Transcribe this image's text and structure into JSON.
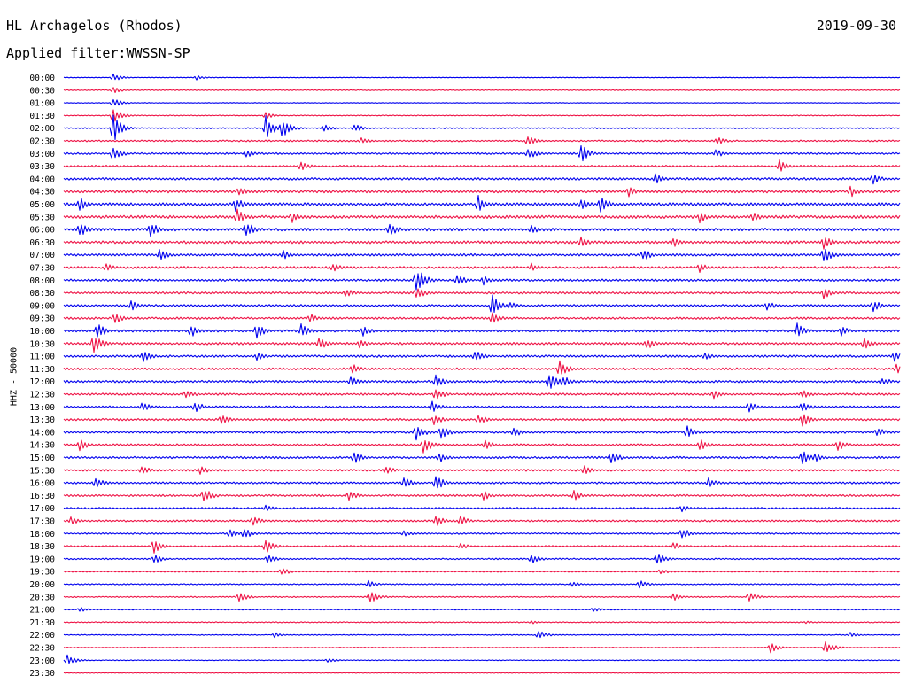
{
  "header": {
    "station": "HL Archagelos (Rhodos)",
    "date": "2019-09-30",
    "filter_label": "Applied filter:",
    "filter_value": "WWSSN-SP"
  },
  "chart_data": {
    "type": "line",
    "title": "HL Archagelos (Rhodos)",
    "ylabel": "HHZ - 50000",
    "colors": [
      "#0000ee",
      "#ee1144"
    ],
    "categories": [
      "00:00",
      "00:30",
      "01:00",
      "01:30",
      "02:00",
      "02:30",
      "03:00",
      "03:30",
      "04:00",
      "04:30",
      "05:00",
      "05:30",
      "06:00",
      "06:30",
      "07:00",
      "07:30",
      "08:00",
      "08:30",
      "09:00",
      "09:30",
      "10:00",
      "10:30",
      "11:00",
      "11:30",
      "12:00",
      "12:30",
      "13:00",
      "13:30",
      "14:00",
      "14:30",
      "15:00",
      "15:30",
      "16:00",
      "16:30",
      "17:00",
      "17:30",
      "18:00",
      "18:30",
      "19:00",
      "19:30",
      "20:00",
      "20:30",
      "21:00",
      "21:30",
      "22:00",
      "22:30",
      "23:00",
      "23:30"
    ],
    "noise": [
      0.25,
      0.35,
      0.25,
      0.35,
      0.45,
      0.6,
      0.7,
      0.75,
      0.9,
      1.0,
      1.1,
      1.1,
      1.1,
      1.0,
      0.9,
      0.9,
      0.85,
      0.8,
      0.8,
      0.8,
      0.9,
      0.9,
      0.85,
      0.8,
      0.85,
      0.8,
      0.8,
      0.8,
      0.85,
      0.8,
      0.8,
      0.8,
      0.75,
      0.75,
      0.7,
      0.7,
      0.6,
      0.6,
      0.55,
      0.5,
      0.45,
      0.45,
      0.4,
      0.4,
      0.35,
      0.35,
      0.3,
      0.3
    ],
    "events": [
      {
        "row": 0,
        "x": 127,
        "amp": 5
      },
      {
        "row": 0,
        "x": 222,
        "amp": 3
      },
      {
        "row": 1,
        "x": 127,
        "amp": 4
      },
      {
        "row": 2,
        "x": 127,
        "amp": 6
      },
      {
        "row": 3,
        "x": 127,
        "amp": 10
      },
      {
        "row": 3,
        "x": 300,
        "amp": 4
      },
      {
        "row": 4,
        "x": 127,
        "amp": 18
      },
      {
        "row": 4,
        "x": 300,
        "amp": 14
      },
      {
        "row": 4,
        "x": 318,
        "amp": 12
      },
      {
        "row": 4,
        "x": 365,
        "amp": 5
      },
      {
        "row": 4,
        "x": 400,
        "amp": 5
      },
      {
        "row": 5,
        "x": 408,
        "amp": 4
      },
      {
        "row": 5,
        "x": 596,
        "amp": 6
      },
      {
        "row": 5,
        "x": 810,
        "amp": 5
      },
      {
        "row": 6,
        "x": 127,
        "amp": 10
      },
      {
        "row": 6,
        "x": 278,
        "amp": 5
      },
      {
        "row": 6,
        "x": 595,
        "amp": 8
      },
      {
        "row": 6,
        "x": 655,
        "amp": 12
      },
      {
        "row": 6,
        "x": 808,
        "amp": 5
      },
      {
        "row": 7,
        "x": 340,
        "amp": 6
      },
      {
        "row": 7,
        "x": 880,
        "amp": 7
      },
      {
        "row": 8,
        "x": 740,
        "amp": 6
      },
      {
        "row": 8,
        "x": 985,
        "amp": 7
      },
      {
        "row": 9,
        "x": 270,
        "amp": 6
      },
      {
        "row": 9,
        "x": 710,
        "amp": 6
      },
      {
        "row": 9,
        "x": 960,
        "amp": 7
      },
      {
        "row": 10,
        "x": 90,
        "amp": 8
      },
      {
        "row": 10,
        "x": 265,
        "amp": 9
      },
      {
        "row": 10,
        "x": 540,
        "amp": 10
      },
      {
        "row": 10,
        "x": 655,
        "amp": 8
      },
      {
        "row": 10,
        "x": 678,
        "amp": 11
      },
      {
        "row": 11,
        "x": 268,
        "amp": 9
      },
      {
        "row": 11,
        "x": 330,
        "amp": 7
      },
      {
        "row": 11,
        "x": 790,
        "amp": 7
      },
      {
        "row": 11,
        "x": 850,
        "amp": 6
      },
      {
        "row": 12,
        "x": 90,
        "amp": 9
      },
      {
        "row": 12,
        "x": 170,
        "amp": 9
      },
      {
        "row": 12,
        "x": 278,
        "amp": 11
      },
      {
        "row": 12,
        "x": 440,
        "amp": 8
      },
      {
        "row": 12,
        "x": 600,
        "amp": 6
      },
      {
        "row": 13,
        "x": 655,
        "amp": 7
      },
      {
        "row": 13,
        "x": 760,
        "amp": 6
      },
      {
        "row": 13,
        "x": 930,
        "amp": 8
      },
      {
        "row": 14,
        "x": 180,
        "amp": 7
      },
      {
        "row": 14,
        "x": 320,
        "amp": 6
      },
      {
        "row": 14,
        "x": 725,
        "amp": 8
      },
      {
        "row": 14,
        "x": 930,
        "amp": 10
      },
      {
        "row": 15,
        "x": 120,
        "amp": 5
      },
      {
        "row": 15,
        "x": 375,
        "amp": 6
      },
      {
        "row": 15,
        "x": 600,
        "amp": 5
      },
      {
        "row": 15,
        "x": 790,
        "amp": 6
      },
      {
        "row": 16,
        "x": 470,
        "amp": 16
      },
      {
        "row": 16,
        "x": 515,
        "amp": 8
      },
      {
        "row": 16,
        "x": 545,
        "amp": 6
      },
      {
        "row": 17,
        "x": 390,
        "amp": 6
      },
      {
        "row": 17,
        "x": 470,
        "amp": 8
      },
      {
        "row": 17,
        "x": 930,
        "amp": 7
      },
      {
        "row": 18,
        "x": 148,
        "amp": 6
      },
      {
        "row": 18,
        "x": 555,
        "amp": 14
      },
      {
        "row": 18,
        "x": 575,
        "amp": 6
      },
      {
        "row": 18,
        "x": 865,
        "amp": 6
      },
      {
        "row": 18,
        "x": 985,
        "amp": 8
      },
      {
        "row": 19,
        "x": 130,
        "amp": 7
      },
      {
        "row": 19,
        "x": 350,
        "amp": 6
      },
      {
        "row": 19,
        "x": 555,
        "amp": 8
      },
      {
        "row": 20,
        "x": 110,
        "amp": 9
      },
      {
        "row": 20,
        "x": 215,
        "amp": 8
      },
      {
        "row": 20,
        "x": 290,
        "amp": 9
      },
      {
        "row": 20,
        "x": 340,
        "amp": 8
      },
      {
        "row": 20,
        "x": 410,
        "amp": 6
      },
      {
        "row": 20,
        "x": 900,
        "amp": 10
      },
      {
        "row": 20,
        "x": 950,
        "amp": 6
      },
      {
        "row": 21,
        "x": 105,
        "amp": 14
      },
      {
        "row": 21,
        "x": 360,
        "amp": 8
      },
      {
        "row": 21,
        "x": 405,
        "amp": 6
      },
      {
        "row": 21,
        "x": 730,
        "amp": 7
      },
      {
        "row": 21,
        "x": 975,
        "amp": 8
      },
      {
        "row": 22,
        "x": 162,
        "amp": 7
      },
      {
        "row": 22,
        "x": 290,
        "amp": 5
      },
      {
        "row": 22,
        "x": 535,
        "amp": 8
      },
      {
        "row": 22,
        "x": 795,
        "amp": 6
      },
      {
        "row": 22,
        "x": 1010,
        "amp": 6
      },
      {
        "row": 23,
        "x": 398,
        "amp": 6
      },
      {
        "row": 23,
        "x": 632,
        "amp": 10
      },
      {
        "row": 23,
        "x": 1012,
        "amp": 6
      },
      {
        "row": 24,
        "x": 395,
        "amp": 8
      },
      {
        "row": 24,
        "x": 492,
        "amp": 8
      },
      {
        "row": 24,
        "x": 620,
        "amp": 11
      },
      {
        "row": 24,
        "x": 635,
        "amp": 8
      },
      {
        "row": 24,
        "x": 995,
        "amp": 6
      },
      {
        "row": 25,
        "x": 210,
        "amp": 6
      },
      {
        "row": 25,
        "x": 492,
        "amp": 8
      },
      {
        "row": 25,
        "x": 805,
        "amp": 6
      },
      {
        "row": 25,
        "x": 905,
        "amp": 6
      },
      {
        "row": 26,
        "x": 160,
        "amp": 6
      },
      {
        "row": 26,
        "x": 220,
        "amp": 7
      },
      {
        "row": 26,
        "x": 487,
        "amp": 8
      },
      {
        "row": 26,
        "x": 845,
        "amp": 7
      },
      {
        "row": 26,
        "x": 905,
        "amp": 8
      },
      {
        "row": 27,
        "x": 250,
        "amp": 6
      },
      {
        "row": 27,
        "x": 490,
        "amp": 7
      },
      {
        "row": 27,
        "x": 540,
        "amp": 6
      },
      {
        "row": 27,
        "x": 906,
        "amp": 8
      },
      {
        "row": 28,
        "x": 470,
        "amp": 10
      },
      {
        "row": 28,
        "x": 498,
        "amp": 8
      },
      {
        "row": 28,
        "x": 580,
        "amp": 7
      },
      {
        "row": 28,
        "x": 775,
        "amp": 8
      },
      {
        "row": 28,
        "x": 990,
        "amp": 6
      },
      {
        "row": 29,
        "x": 90,
        "amp": 7
      },
      {
        "row": 29,
        "x": 478,
        "amp": 10
      },
      {
        "row": 29,
        "x": 548,
        "amp": 6
      },
      {
        "row": 29,
        "x": 790,
        "amp": 7
      },
      {
        "row": 29,
        "x": 945,
        "amp": 8
      },
      {
        "row": 30,
        "x": 400,
        "amp": 7
      },
      {
        "row": 30,
        "x": 495,
        "amp": 7
      },
      {
        "row": 30,
        "x": 690,
        "amp": 8
      },
      {
        "row": 30,
        "x": 905,
        "amp": 9
      },
      {
        "row": 30,
        "x": 920,
        "amp": 6
      },
      {
        "row": 31,
        "x": 160,
        "amp": 6
      },
      {
        "row": 31,
        "x": 225,
        "amp": 6
      },
      {
        "row": 31,
        "x": 435,
        "amp": 6
      },
      {
        "row": 31,
        "x": 660,
        "amp": 6
      },
      {
        "row": 32,
        "x": 107,
        "amp": 8
      },
      {
        "row": 32,
        "x": 455,
        "amp": 8
      },
      {
        "row": 32,
        "x": 492,
        "amp": 9
      },
      {
        "row": 32,
        "x": 800,
        "amp": 6
      },
      {
        "row": 33,
        "x": 230,
        "amp": 9
      },
      {
        "row": 33,
        "x": 393,
        "amp": 7
      },
      {
        "row": 33,
        "x": 545,
        "amp": 6
      },
      {
        "row": 33,
        "x": 648,
        "amp": 6
      },
      {
        "row": 34,
        "x": 300,
        "amp": 4
      },
      {
        "row": 34,
        "x": 770,
        "amp": 4
      },
      {
        "row": 35,
        "x": 80,
        "amp": 5
      },
      {
        "row": 35,
        "x": 285,
        "amp": 6
      },
      {
        "row": 35,
        "x": 492,
        "amp": 7
      },
      {
        "row": 35,
        "x": 520,
        "amp": 6
      },
      {
        "row": 36,
        "x": 260,
        "amp": 6
      },
      {
        "row": 36,
        "x": 275,
        "amp": 7
      },
      {
        "row": 36,
        "x": 455,
        "amp": 5
      },
      {
        "row": 36,
        "x": 770,
        "amp": 7
      },
      {
        "row": 37,
        "x": 173,
        "amp": 9
      },
      {
        "row": 37,
        "x": 300,
        "amp": 8
      },
      {
        "row": 37,
        "x": 520,
        "amp": 4
      },
      {
        "row": 37,
        "x": 760,
        "amp": 5
      },
      {
        "row": 38,
        "x": 173,
        "amp": 6
      },
      {
        "row": 38,
        "x": 302,
        "amp": 6
      },
      {
        "row": 38,
        "x": 600,
        "amp": 6
      },
      {
        "row": 38,
        "x": 742,
        "amp": 7
      },
      {
        "row": 39,
        "x": 318,
        "amp": 5
      },
      {
        "row": 39,
        "x": 745,
        "amp": 4
      },
      {
        "row": 40,
        "x": 415,
        "amp": 5
      },
      {
        "row": 40,
        "x": 645,
        "amp": 4
      },
      {
        "row": 40,
        "x": 722,
        "amp": 5
      },
      {
        "row": 41,
        "x": 270,
        "amp": 6
      },
      {
        "row": 41,
        "x": 418,
        "amp": 8
      },
      {
        "row": 41,
        "x": 760,
        "amp": 5
      },
      {
        "row": 41,
        "x": 845,
        "amp": 6
      },
      {
        "row": 42,
        "x": 90,
        "amp": 3
      },
      {
        "row": 42,
        "x": 670,
        "amp": 3
      },
      {
        "row": 43,
        "x": 600,
        "amp": 2
      },
      {
        "row": 43,
        "x": 910,
        "amp": 2
      },
      {
        "row": 44,
        "x": 310,
        "amp": 3
      },
      {
        "row": 44,
        "x": 607,
        "amp": 6
      },
      {
        "row": 44,
        "x": 960,
        "amp": 3
      },
      {
        "row": 45,
        "x": 870,
        "amp": 6
      },
      {
        "row": 45,
        "x": 932,
        "amp": 8
      },
      {
        "row": 46,
        "x": 75,
        "amp": 7
      },
      {
        "row": 46,
        "x": 370,
        "amp": 3
      }
    ]
  }
}
